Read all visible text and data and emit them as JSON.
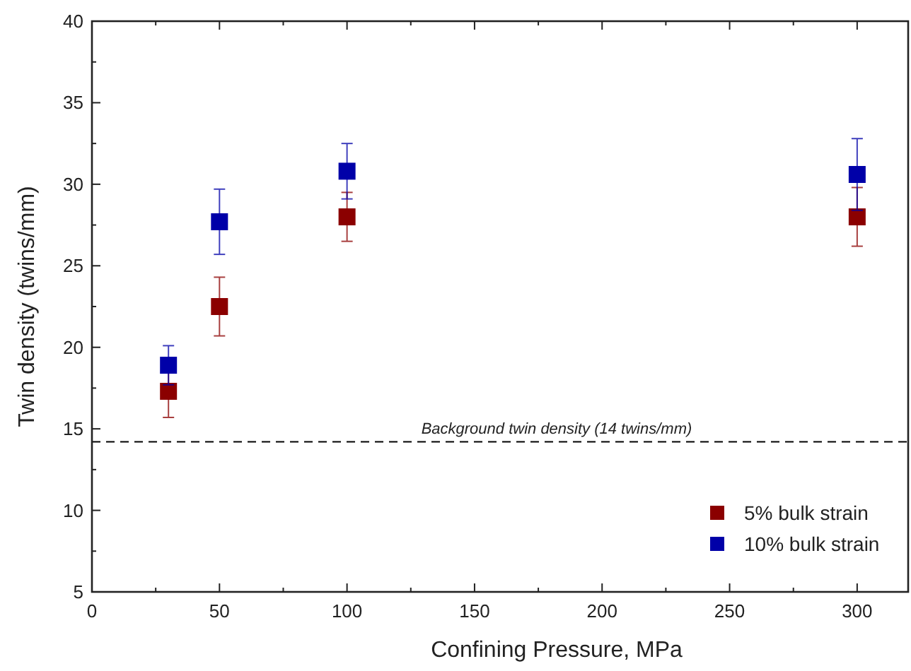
{
  "chart_data": {
    "type": "scatter",
    "xlabel": "Confining Pressure, MPa",
    "ylabel": "Twin density (twins/mm)",
    "xlim": [
      0,
      320
    ],
    "ylim": [
      5,
      40
    ],
    "xticks": [
      0,
      {
        "value": 25,
        "label": null
      },
      50,
      {
        "value": 75,
        "label": null
      },
      100,
      {
        "value": 125,
        "label": null
      },
      150,
      {
        "value": 175,
        "label": null
      },
      200,
      {
        "value": 225,
        "label": null
      },
      250,
      {
        "value": 275,
        "label": null
      },
      300
    ],
    "yticks": [
      5,
      {
        "value": 7.5,
        "label": null
      },
      10,
      {
        "value": 12.5,
        "label": null
      },
      15,
      {
        "value": 17.5,
        "label": null
      },
      20,
      {
        "value": 22.5,
        "label": null
      },
      25,
      {
        "value": 27.5,
        "label": null
      },
      30,
      {
        "value": 32.5,
        "label": null
      },
      35,
      {
        "value": 37.5,
        "label": null
      },
      40
    ],
    "x": [
      30,
      50,
      100,
      300
    ],
    "series": [
      {
        "name": "5% bulk strain",
        "color": "#8b0000",
        "values": [
          17.3,
          22.5,
          28.0,
          28.0
        ],
        "errors": [
          1.6,
          1.8,
          1.5,
          1.8
        ]
      },
      {
        "name": "10% bulk strain",
        "color": "#0000a8",
        "values": [
          18.9,
          27.7,
          30.8,
          30.6
        ],
        "errors": [
          1.2,
          2.0,
          1.7,
          2.2
        ]
      }
    ],
    "marker": "square",
    "legend": "bottom right",
    "grid": false,
    "ref_lines": [
      {
        "axis": "y",
        "value": 14.2,
        "label": "Background twin density (14 twins/mm)",
        "line_style": "dashed",
        "color": "#000000"
      }
    ]
  }
}
